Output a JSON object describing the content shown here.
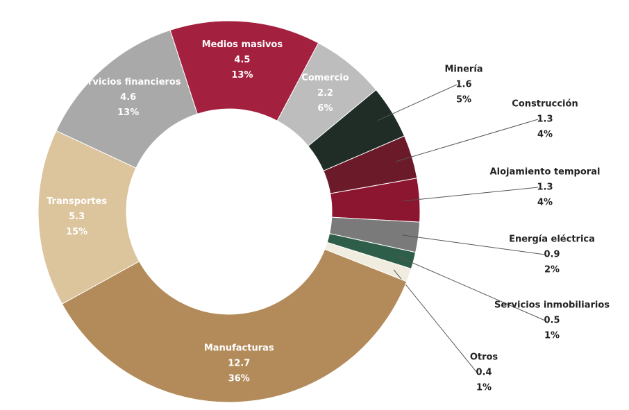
{
  "chart_data": {
    "type": "donut",
    "categories": [
      "Medios masivos",
      "Comercio",
      "Minería",
      "Construcción",
      "Alojamiento temporal",
      "Energía eléctrica",
      "Servicios inmobiliarios",
      "Otros",
      "Manufacturas",
      "Transportes",
      "Servicios financieros"
    ],
    "values": [
      4.5,
      2.2,
      1.6,
      1.3,
      1.3,
      0.9,
      0.5,
      0.4,
      12.7,
      5.3,
      4.6
    ],
    "percent_labels": [
      "13%",
      "6%",
      "5%",
      "4%",
      "4%",
      "2%",
      "1%",
      "1%",
      "36%",
      "15%",
      "13%"
    ],
    "colors": [
      "#a3203f",
      "#bdbdbd",
      "#1f2d26",
      "#6b1a2a",
      "#8c1530",
      "#7a7a7a",
      "#2e5e4a",
      "#f0ede0",
      "#b38b5a",
      "#dcc49c",
      "#a9a9a9"
    ]
  }
}
